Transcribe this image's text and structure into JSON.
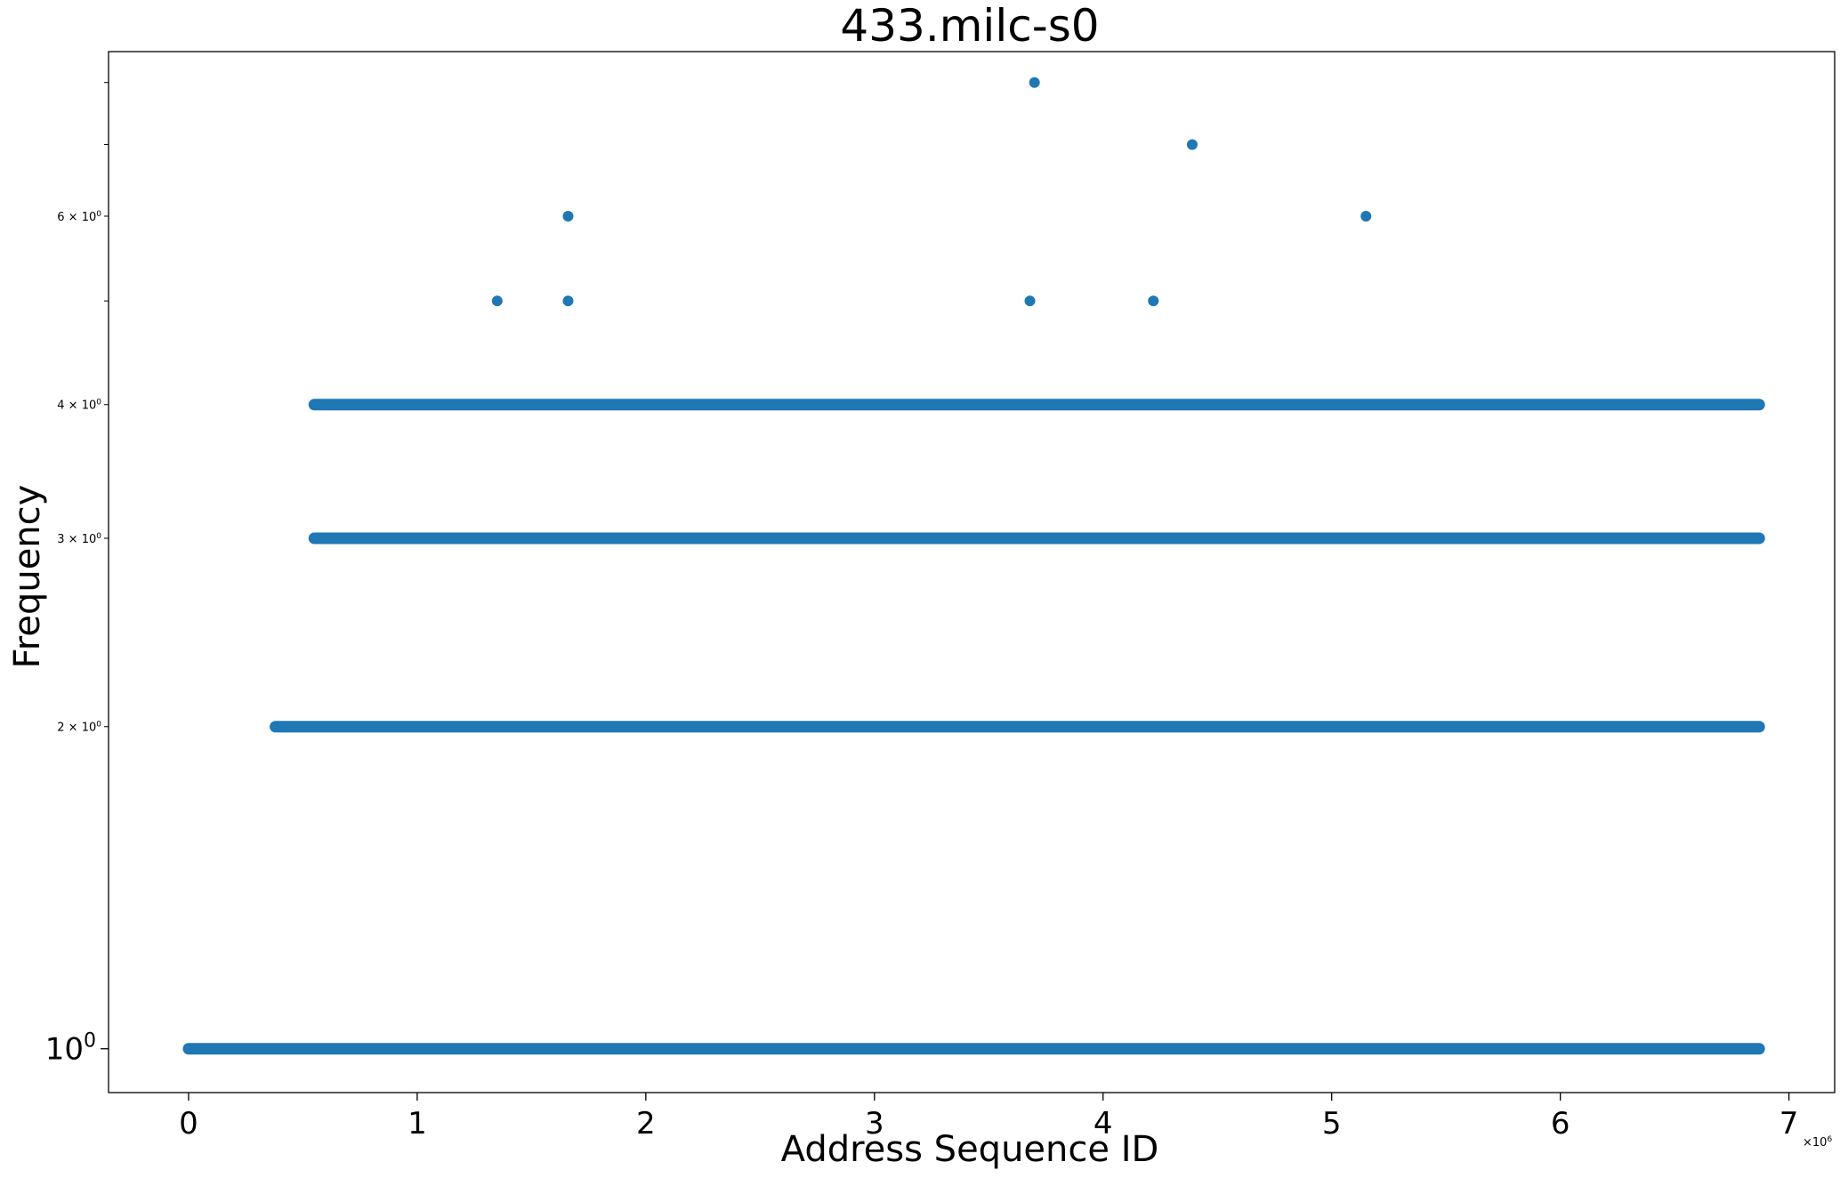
{
  "chart_data": {
    "type": "scatter",
    "title": "433.milc-s0",
    "xlabel": "Address Sequence ID",
    "ylabel": "Frequency",
    "x_scale_label": "×10",
    "x_scale_exponent": "6",
    "x_multiplier": 1000000,
    "xlim": [
      -0.35,
      7.2
    ],
    "ylim_log": [
      0.91,
      8.55
    ],
    "yscale": "log",
    "grid": false,
    "color": "#1f77b4",
    "x_ticks": [
      {
        "value": 0,
        "label": "0"
      },
      {
        "value": 1,
        "label": "1"
      },
      {
        "value": 2,
        "label": "2"
      },
      {
        "value": 3,
        "label": "3"
      },
      {
        "value": 4,
        "label": "4"
      },
      {
        "value": 5,
        "label": "5"
      },
      {
        "value": 6,
        "label": "6"
      },
      {
        "value": 7,
        "label": "7"
      }
    ],
    "y_major_ticks": [
      {
        "value": 1,
        "label": "10",
        "exp": "0"
      }
    ],
    "y_minor_ticks": [
      {
        "value": 2,
        "label": "2 × 10",
        "exp": "0"
      },
      {
        "value": 3,
        "label": "3 × 10",
        "exp": "0"
      },
      {
        "value": 4,
        "label": "4 × 10",
        "exp": "0"
      },
      {
        "value": 5,
        "label": "",
        "exp": ""
      },
      {
        "value": 6,
        "label": "6 × 10",
        "exp": "0"
      },
      {
        "value": 7,
        "label": "",
        "exp": ""
      },
      {
        "value": 8,
        "label": "",
        "exp": ""
      }
    ],
    "bands": [
      {
        "y": 1,
        "x_start": 0.0,
        "x_end": 6.87
      },
      {
        "y": 2,
        "x_start": 0.38,
        "x_end": 6.87
      },
      {
        "y": 3,
        "x_start": 0.55,
        "x_end": 6.87
      },
      {
        "y": 4,
        "x_start": 0.55,
        "x_end": 6.87
      }
    ],
    "points": [
      {
        "x": 1.35,
        "y": 5
      },
      {
        "x": 1.66,
        "y": 5
      },
      {
        "x": 1.66,
        "y": 6
      },
      {
        "x": 3.68,
        "y": 5
      },
      {
        "x": 3.7,
        "y": 8
      },
      {
        "x": 4.22,
        "y": 5
      },
      {
        "x": 4.39,
        "y": 7
      },
      {
        "x": 5.15,
        "y": 6
      }
    ]
  }
}
